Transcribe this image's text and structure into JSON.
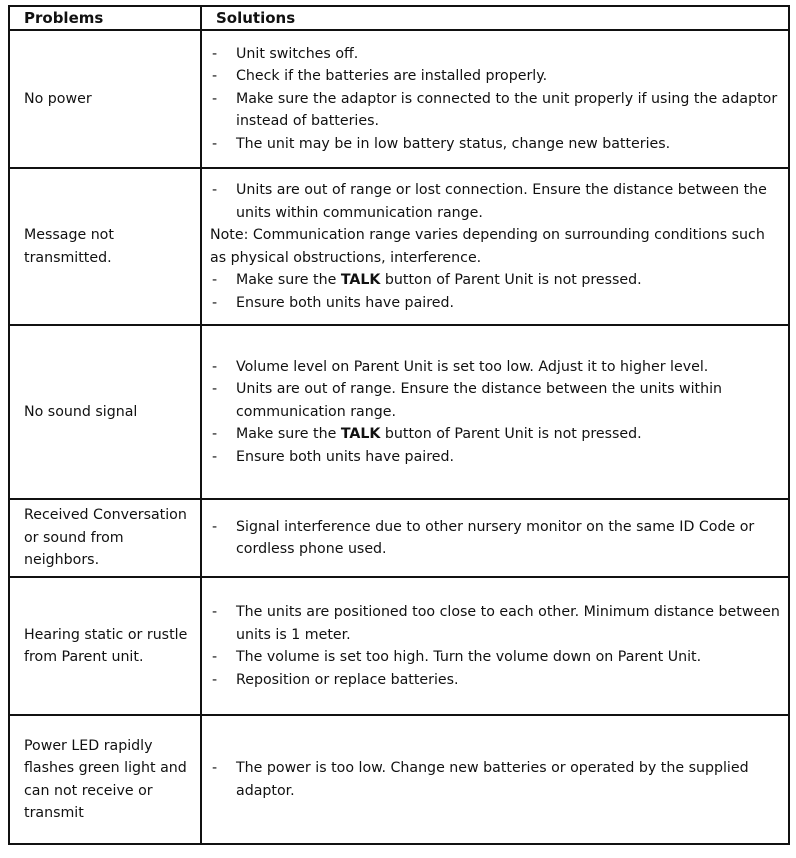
{
  "header": {
    "problems": "Problems",
    "solutions": "Solutions"
  },
  "rows": [
    {
      "problem": "No power",
      "solutions": [
        {
          "dash": "-",
          "pre": "Unit switches off."
        },
        {
          "dash": "-",
          "pre": "Check if the batteries are installed properly."
        },
        {
          "dash": "-",
          "pre": "Make sure the adaptor is connected to the unit properly if using the adaptor instead of batteries."
        },
        {
          "dash": "-",
          "pre": "The unit may be in low battery status, change new batteries."
        }
      ]
    },
    {
      "problem": "Message not transmitted.",
      "solutions": [
        {
          "dash": "-",
          "pre": "Units are out of range or lost connection. Ensure the distance between the units within communication range."
        },
        {
          "note": "Note: Communication range varies depending on surrounding conditions such as physical obstructions, interference."
        },
        {
          "dash": "-",
          "pre": "Make sure the ",
          "bold": "TALK",
          "post": " button of Parent Unit is not pressed."
        },
        {
          "dash": "-",
          "pre": "Ensure both units have paired."
        }
      ]
    },
    {
      "problem": "No sound signal",
      "solutions": [
        {
          "dash": "-",
          "pre": "Volume level on Parent Unit is set too low. Adjust it to higher level."
        },
        {
          "dash": "-",
          "pre": "Units are out of range. Ensure the distance between the units within communication range."
        },
        {
          "dash": "-",
          "pre": "Make sure the ",
          "bold": "TALK",
          "post": " button of Parent Unit is not pressed."
        },
        {
          "dash": "-",
          "pre": "Ensure both units have paired."
        }
      ]
    },
    {
      "problem": "Received Conversation or sound from neighbors.",
      "solutions": [
        {
          "dash": "-",
          "pre": "Signal interference due to other nursery monitor on the same ID Code or cordless phone used."
        }
      ]
    },
    {
      "problem": "Hearing static or rustle from Parent unit.",
      "solutions": [
        {
          "dash": "-",
          "pre": "The units are positioned too close to each other. Minimum distance between units is 1 meter."
        },
        {
          "dash": "-",
          "pre": "The volume is set too high. Turn the volume down on Parent Unit."
        },
        {
          "dash": "-",
          "pre": "Reposition or replace batteries."
        }
      ]
    },
    {
      "problem": "Power LED rapidly flashes green light and can not receive or transmit",
      "solutions": [
        {
          "dash": "-",
          "pre": "The power is too low. Change new batteries or operated by the supplied adaptor."
        }
      ]
    }
  ]
}
